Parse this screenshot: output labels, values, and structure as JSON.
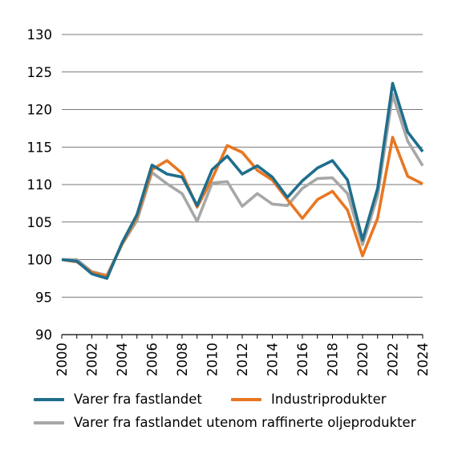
{
  "chart_data": {
    "type": "line",
    "title": "",
    "xlabel": "",
    "ylabel": "",
    "x": [
      2000,
      2001,
      2002,
      2003,
      2004,
      2005,
      2006,
      2007,
      2008,
      2009,
      2010,
      2011,
      2012,
      2013,
      2014,
      2015,
      2016,
      2017,
      2018,
      2019,
      2020,
      2021,
      2022,
      2023,
      2024
    ],
    "xticks": [
      "2000",
      "2002",
      "2004",
      "2006",
      "2008",
      "2010",
      "2012",
      "2014",
      "2016",
      "2018",
      "2020",
      "2022",
      "2024"
    ],
    "xlim": [
      2000,
      2024
    ],
    "ylim": [
      90,
      130
    ],
    "yticks": [
      "90",
      "95",
      "100",
      "105",
      "110",
      "115",
      "120",
      "125",
      "130"
    ],
    "grid": "horizontal",
    "legend_position": "bottom",
    "series": [
      {
        "name": "Varer fra fastlandet",
        "color": "#1f6e8c",
        "values": [
          100.0,
          99.8,
          98.1,
          97.5,
          102.2,
          106.0,
          112.6,
          111.4,
          111.0,
          107.2,
          112.0,
          113.8,
          111.4,
          112.5,
          111.0,
          108.3,
          110.5,
          112.2,
          113.2,
          110.6,
          102.6,
          109.5,
          123.5,
          117.0,
          114.4
        ]
      },
      {
        "name": "Industriprodukter",
        "color": "#e87722",
        "values": [
          100.0,
          99.7,
          98.3,
          97.8,
          102.0,
          105.7,
          112.0,
          113.2,
          111.5,
          107.0,
          110.8,
          115.2,
          114.3,
          111.9,
          110.6,
          108.0,
          105.5,
          108.0,
          109.1,
          106.6,
          100.5,
          105.5,
          116.3,
          111.1,
          110.1
        ]
      },
      {
        "name": "Varer fra fastlandet utenom raffinerte oljeprodukter",
        "color": "#a7a7a7",
        "values": [
          100.0,
          100.0,
          98.4,
          97.9,
          102.0,
          105.2,
          111.6,
          110.1,
          108.8,
          105.1,
          110.2,
          110.4,
          107.1,
          108.8,
          107.4,
          107.2,
          109.5,
          110.8,
          110.9,
          108.8,
          102.0,
          108.5,
          122.0,
          115.8,
          112.5
        ]
      }
    ]
  }
}
